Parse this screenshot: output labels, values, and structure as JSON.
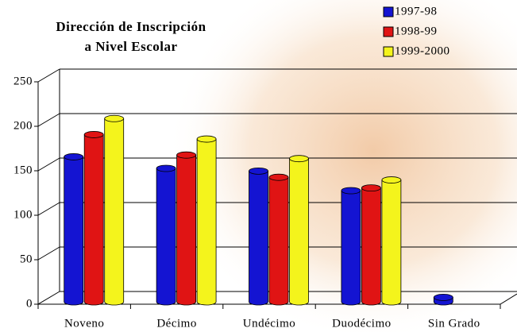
{
  "chart_data": {
    "type": "bar",
    "title": [
      "Dirección de Inscripción",
      "a Nivel Escolar"
    ],
    "categories": [
      "Noveno",
      "Décimo",
      "Undécimo",
      "Duodécimo",
      "Sin Grado"
    ],
    "series": [
      {
        "name": "1997-98",
        "color": "#1414d2",
        "values": [
          163,
          150,
          147,
          125,
          5
        ]
      },
      {
        "name": "1998-99",
        "color": "#e01414",
        "values": [
          188,
          165,
          140,
          128,
          null
        ]
      },
      {
        "name": "1999-2000",
        "color": "#f4f41c",
        "values": [
          206,
          183,
          161,
          137,
          null
        ]
      }
    ],
    "ylim": [
      0,
      250
    ],
    "yticks": [
      0,
      50,
      100,
      150,
      200,
      250
    ],
    "grid": true,
    "legend": "top-right"
  }
}
